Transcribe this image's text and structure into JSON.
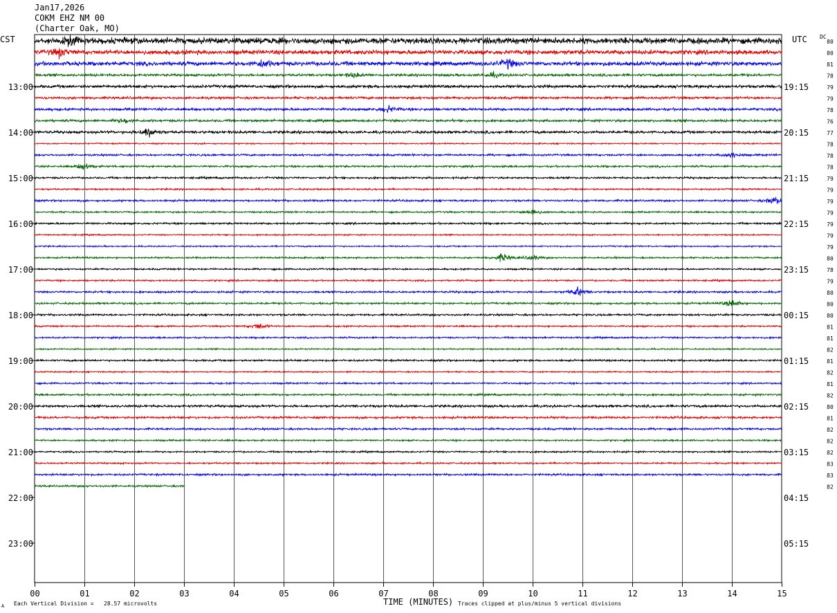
{
  "header": {
    "date": "Jan17,2026",
    "station": "COKM EHZ NM 00",
    "location": "(Charter Oak, MO)"
  },
  "left_axis_title": "CST",
  "right_axis_title": "UTC",
  "dc_title": "DC",
  "footer": {
    "vertical_division": "Each Vertical Division =   28.57 microvolts",
    "x_axis_title": "TIME (MINUTES)",
    "clipping_note": "Traces clipped at plus/minus 5 vertical divisions",
    "corner_mark": "A"
  },
  "chart_data": {
    "type": "line",
    "title": "COKM EHZ NM 00",
    "xlabel": "TIME (MINUTES)",
    "ylabel": "",
    "xlim": [
      0,
      15
    ],
    "x_ticks": [
      "00",
      "01",
      "02",
      "03",
      "04",
      "05",
      "06",
      "07",
      "08",
      "09",
      "10",
      "11",
      "12",
      "13",
      "14",
      "15"
    ],
    "trace_interval_minutes": 15,
    "trace_colors": [
      "#000000",
      "#e00000",
      "#0000e0",
      "#006400"
    ],
    "grid": true,
    "cst_hour_labels": [
      "13:00",
      "14:00",
      "15:00",
      "16:00",
      "17:00",
      "18:00",
      "19:00",
      "20:00",
      "21:00",
      "22:00",
      "23:00"
    ],
    "utc_hour_labels": [
      "19:15",
      "20:15",
      "21:15",
      "22:15",
      "23:15",
      "00:15",
      "01:15",
      "02:15",
      "03:15",
      "04:15",
      "05:15"
    ],
    "dc_offsets": [
      80,
      80,
      81,
      78,
      79,
      79,
      78,
      76,
      77,
      78,
      78,
      78,
      79,
      79,
      79,
      79,
      79,
      79,
      79,
      80,
      78,
      79,
      80,
      80,
      80,
      81,
      81,
      82,
      81,
      82,
      81,
      82,
      80,
      81,
      82,
      82,
      82,
      83,
      83,
      82
    ],
    "trace_amplitude_divisions": [
      1.1,
      0.8,
      0.75,
      0.45,
      0.55,
      0.45,
      0.45,
      0.45,
      0.5,
      0.25,
      0.35,
      0.35,
      0.35,
      0.3,
      0.35,
      0.3,
      0.35,
      0.25,
      0.25,
      0.3,
      0.3,
      0.3,
      0.35,
      0.35,
      0.35,
      0.3,
      0.3,
      0.25,
      0.35,
      0.25,
      0.3,
      0.35,
      0.45,
      0.4,
      0.35,
      0.3,
      0.3,
      0.3,
      0.35,
      0.35
    ],
    "last_trace_end_minute": 3.0,
    "events": [
      {
        "trace": 0,
        "minute": 0.7,
        "amplitude": 1.4
      },
      {
        "trace": 1,
        "minute": 0.5,
        "amplitude": 1.5
      },
      {
        "trace": 2,
        "minute": 4.6,
        "amplitude": 1.5
      },
      {
        "trace": 2,
        "minute": 9.5,
        "amplitude": 1.6
      },
      {
        "trace": 3,
        "minute": 6.4,
        "amplitude": 0.8
      },
      {
        "trace": 3,
        "minute": 9.2,
        "amplitude": 0.8
      },
      {
        "trace": 6,
        "minute": 7.1,
        "amplitude": 1.2
      },
      {
        "trace": 7,
        "minute": 1.8,
        "amplitude": 0.8
      },
      {
        "trace": 8,
        "minute": 2.3,
        "amplitude": 2.0
      },
      {
        "trace": 10,
        "minute": 14.0,
        "amplitude": 1.2
      },
      {
        "trace": 11,
        "minute": 1.0,
        "amplitude": 1.3
      },
      {
        "trace": 14,
        "minute": 14.85,
        "amplitude": 1.6
      },
      {
        "trace": 15,
        "minute": 10.0,
        "amplitude": 1.3
      },
      {
        "trace": 19,
        "minute": 9.4,
        "amplitude": 1.6
      },
      {
        "trace": 19,
        "minute": 10.0,
        "amplitude": 1.0
      },
      {
        "trace": 22,
        "minute": 10.9,
        "amplitude": 1.6
      },
      {
        "trace": 23,
        "minute": 14.0,
        "amplitude": 1.4
      },
      {
        "trace": 25,
        "minute": 4.5,
        "amplitude": 1.2
      }
    ]
  }
}
